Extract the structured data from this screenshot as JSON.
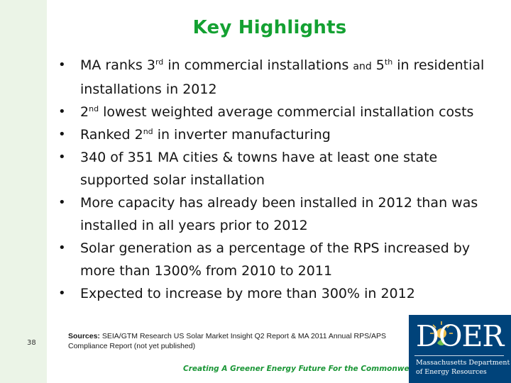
{
  "slide": {
    "title": "Key Highlights",
    "page_number": "38"
  },
  "bullets": [
    {
      "parts": [
        {
          "t": "MA ranks 3"
        },
        {
          "t": "rd",
          "sup": true
        },
        {
          "t": " in commercial installations "
        },
        {
          "t": "and",
          "small": true
        },
        {
          "t": " 5"
        },
        {
          "t": "th",
          "sup": true
        },
        {
          "t": " in residential installations in 2012"
        }
      ]
    },
    {
      "parts": [
        {
          "t": "2"
        },
        {
          "t": "nd",
          "sup": true
        },
        {
          "t": " lowest weighted average commercial installation costs"
        }
      ]
    },
    {
      "parts": [
        {
          "t": "Ranked 2"
        },
        {
          "t": "nd",
          "sup": true
        },
        {
          "t": " in inverter manufacturing"
        }
      ]
    },
    {
      "parts": [
        {
          "t": "340 of 351 MA cities & towns have at least one state supported solar installation"
        }
      ]
    },
    {
      "parts": [
        {
          "t": "More capacity has already been installed in 2012 than was installed in all years prior to 2012"
        }
      ]
    },
    {
      "parts": [
        {
          "t": "Solar generation as a percentage of the RPS increased by more than 1300% from 2010 to 2011"
        }
      ]
    },
    {
      "parts": [
        {
          "t": "Expected to increase by more than 300% in 2012"
        }
      ]
    }
  ],
  "bullet_glyph": "•",
  "sources": {
    "label": "Sources:",
    "text": " SEIA/GTM Research US Solar Market Insight Q2 Report & MA 2011 Annual RPS/APS Compliance Report (not yet published)"
  },
  "footer": {
    "tagline": "Creating A Greener Energy Future For the Commonwealth"
  },
  "logo": {
    "wordmark": "DOER",
    "line1": "Massachusetts Department",
    "line2": "of Energy Resources",
    "icon": "sun-leaf-logo-icon"
  },
  "colors": {
    "title": "#14a132",
    "tagline": "#1a9636",
    "logo_bg": "#00437a",
    "sidebar": "#ebf4e7"
  }
}
